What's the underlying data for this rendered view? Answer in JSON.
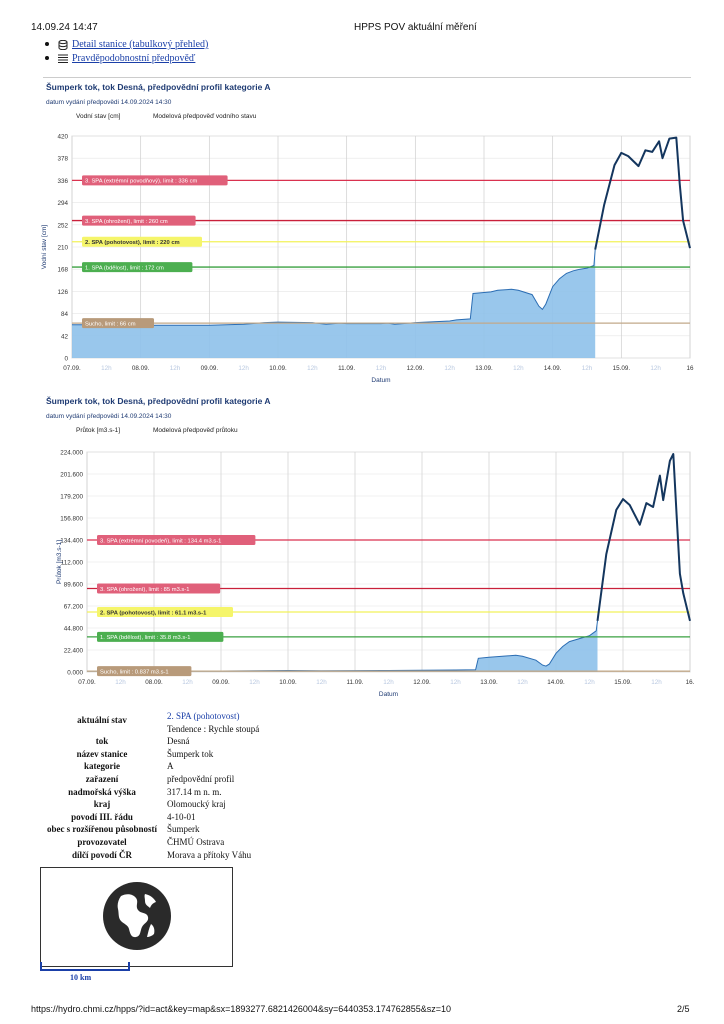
{
  "header": {
    "datetime": "14.09.24 14:47",
    "title": "HPPS POV aktuální měření"
  },
  "links": {
    "detail": "Detail stanice (tabulkový přehled)",
    "forecast": "Pravděpodobnostní předpověď"
  },
  "chart_data": [
    {
      "type": "area",
      "title": "Šumperk tok, tok Desná, předpovědní profil kategorie A",
      "subtitle": "datum vydání předpovědi 14.09.2024 14:30",
      "legend": [
        "Vodní stav [cm]",
        "Modelová předpověď vodního stavu"
      ],
      "ylabel": "Vodní stav [cm]",
      "xlabel": "Datum",
      "ylim": [
        0,
        420
      ],
      "yticks": [
        "0",
        "42",
        "84",
        "126",
        "168",
        "210",
        "252",
        "294",
        "336",
        "378",
        "420"
      ],
      "xlim": [
        0,
        9
      ],
      "xticks": [
        {
          "x": 0,
          "label": "07.09.",
          "minor": false
        },
        {
          "x": 0.5,
          "label": "12h",
          "minor": true
        },
        {
          "x": 1,
          "label": "08.09.",
          "minor": false
        },
        {
          "x": 1.5,
          "label": "12h",
          "minor": true
        },
        {
          "x": 2,
          "label": "09.09.",
          "minor": false
        },
        {
          "x": 2.5,
          "label": "12h",
          "minor": true
        },
        {
          "x": 3,
          "label": "10.09.",
          "minor": false
        },
        {
          "x": 3.5,
          "label": "12h",
          "minor": true
        },
        {
          "x": 4,
          "label": "11.09.",
          "minor": false
        },
        {
          "x": 4.5,
          "label": "12h",
          "minor": true
        },
        {
          "x": 5,
          "label": "12.09.",
          "minor": false
        },
        {
          "x": 5.5,
          "label": "12h",
          "minor": true
        },
        {
          "x": 6,
          "label": "13.09.",
          "minor": false
        },
        {
          "x": 6.5,
          "label": "12h",
          "minor": true
        },
        {
          "x": 7,
          "label": "14.09.",
          "minor": false
        },
        {
          "x": 7.5,
          "label": "12h",
          "minor": true
        },
        {
          "x": 8,
          "label": "15.09.",
          "minor": false
        },
        {
          "x": 8.5,
          "label": "12h",
          "minor": true
        },
        {
          "x": 9,
          "label": "16",
          "minor": false
        }
      ],
      "limits": [
        {
          "value": 336,
          "label": "3. SPA (extrémní povodňový), limit : 336 cm",
          "color": "#d9324f",
          "badge": "#e0607a",
          "textcolor": "#ffffff"
        },
        {
          "value": 260,
          "label": "3. SPA (ohrožení), limit : 260 cm",
          "color": "#c9203a",
          "badge": "#e0607a",
          "textcolor": "#ffffff"
        },
        {
          "value": 220,
          "label": "2. SPA (pohotovost), limit : 220 cm",
          "color": "#f2f25a",
          "badge": "#f5f56a",
          "textcolor": "#333333"
        },
        {
          "value": 172,
          "label": "1. SPA (bdělost), limit : 172 cm",
          "color": "#3aa040",
          "badge": "#4caf50",
          "textcolor": "#ffffff"
        },
        {
          "value": 66,
          "label": "Sucho, limit : 66 cm",
          "color": "#c2a98a",
          "badge": "#b89a7a",
          "textcolor": "#ffffff"
        }
      ],
      "observed_x": [
        0,
        0.3,
        0.6,
        1,
        1.5,
        2,
        2.5,
        2.8,
        3,
        3.5,
        3.7,
        3.9,
        4,
        4.5,
        4.6,
        4.7,
        5,
        5.5,
        5.6,
        5.8,
        5.84,
        6,
        6.1,
        6.2,
        6.4,
        6.5,
        6.7,
        6.8,
        6.85,
        6.9,
        7,
        7.1,
        7.2,
        7.3,
        7.4,
        7.5,
        7.6,
        7.62
      ],
      "observed_y": [
        63,
        63,
        62,
        62,
        62,
        62,
        64,
        67,
        68,
        67,
        64,
        66,
        65,
        65,
        66,
        64,
        67,
        70,
        72,
        74,
        122,
        124,
        125,
        128,
        130,
        128,
        120,
        98,
        92,
        102,
        135,
        150,
        160,
        165,
        168,
        170,
        175,
        205
      ],
      "forecast_x": [
        7.62,
        7.75,
        7.9,
        8,
        8.1,
        8.25,
        8.35,
        8.45,
        8.55,
        8.6,
        8.7,
        8.8,
        8.85,
        8.9,
        9
      ],
      "forecast_y": [
        205,
        290,
        365,
        388,
        382,
        363,
        393,
        390,
        410,
        378,
        415,
        417,
        330,
        260,
        208
      ]
    },
    {
      "type": "area",
      "title": "Šumperk tok, tok Desná, předpovědní profil kategorie A",
      "subtitle": "datum vydání předpovědi 14.09.2024 14:30",
      "legend": [
        "Průtok [m3.s-1]",
        "Modelová předpověď průtoku"
      ],
      "ylabel": "Průtok [m3.s-1]",
      "xlabel": "Datum",
      "ylim": [
        0,
        224
      ],
      "yticks": [
        "0.000",
        "22.400",
        "44.800",
        "67.200",
        "89.600",
        "112.000",
        "134.400",
        "156.800",
        "179.200",
        "201.600",
        "224.000"
      ],
      "xlim": [
        0,
        9
      ],
      "xticks": [
        {
          "x": 0,
          "label": "07.09.",
          "minor": false
        },
        {
          "x": 0.5,
          "label": "12h",
          "minor": true
        },
        {
          "x": 1,
          "label": "08.09.",
          "minor": false
        },
        {
          "x": 1.5,
          "label": "12h",
          "minor": true
        },
        {
          "x": 2,
          "label": "09.09.",
          "minor": false
        },
        {
          "x": 2.5,
          "label": "12h",
          "minor": true
        },
        {
          "x": 3,
          "label": "10.09.",
          "minor": false
        },
        {
          "x": 3.5,
          "label": "12h",
          "minor": true
        },
        {
          "x": 4,
          "label": "11.09.",
          "minor": false
        },
        {
          "x": 4.5,
          "label": "12h",
          "minor": true
        },
        {
          "x": 5,
          "label": "12.09.",
          "minor": false
        },
        {
          "x": 5.5,
          "label": "12h",
          "minor": true
        },
        {
          "x": 6,
          "label": "13.09.",
          "minor": false
        },
        {
          "x": 6.5,
          "label": "12h",
          "minor": true
        },
        {
          "x": 7,
          "label": "14.09.",
          "minor": false
        },
        {
          "x": 7.5,
          "label": "12h",
          "minor": true
        },
        {
          "x": 8,
          "label": "15.09.",
          "minor": false
        },
        {
          "x": 8.5,
          "label": "12h",
          "minor": true
        },
        {
          "x": 9,
          "label": "16.",
          "minor": false
        }
      ],
      "limits": [
        {
          "value": 134.4,
          "label": "3. SPA (extrémní povodeň), limit : 134.4 m3.s-1",
          "color": "#d9324f",
          "badge": "#e0607a",
          "textcolor": "#ffffff"
        },
        {
          "value": 85,
          "label": "3. SPA (ohrožení), limit : 85 m3.s-1",
          "color": "#c9203a",
          "badge": "#e0607a",
          "textcolor": "#ffffff"
        },
        {
          "value": 61.1,
          "label": "2. SPA (pohotovost), limit : 61.1 m3.s-1",
          "color": "#f2f25a",
          "badge": "#f5f56a",
          "textcolor": "#333333"
        },
        {
          "value": 35.8,
          "label": "1. SPA (bdělost), limit : 35.8 m3.s-1",
          "color": "#3aa040",
          "badge": "#4caf50",
          "textcolor": "#ffffff"
        },
        {
          "value": 0.837,
          "label": "Sucho, limit : 0.837 m3.s-1",
          "color": "#c2a98a",
          "badge": "#b89a7a",
          "textcolor": "#ffffff"
        }
      ],
      "observed_x": [
        0,
        1,
        1.5,
        2,
        2.5,
        3,
        3.5,
        4,
        4.5,
        5,
        5.5,
        5.8,
        5.84,
        6,
        6.2,
        6.4,
        6.5,
        6.7,
        6.8,
        6.85,
        6.9,
        7,
        7.1,
        7.2,
        7.3,
        7.4,
        7.5,
        7.6,
        7.62
      ],
      "observed_y": [
        1,
        1,
        1,
        1,
        1.3,
        1.5,
        1.3,
        1.4,
        1.5,
        1.8,
        2,
        2.3,
        14,
        15,
        16,
        17,
        16,
        12,
        7,
        6,
        8,
        19,
        26,
        31,
        33,
        35,
        37,
        42,
        52
      ],
      "forecast_x": [
        7.62,
        7.75,
        7.9,
        8,
        8.1,
        8.25,
        8.35,
        8.45,
        8.55,
        8.6,
        8.7,
        8.75,
        8.8,
        8.85,
        8.9,
        9
      ],
      "forecast_y": [
        52,
        120,
        165,
        176,
        170,
        150,
        172,
        168,
        200,
        175,
        215,
        222,
        160,
        100,
        80,
        52
      ]
    }
  ],
  "info": [
    {
      "key": "aktuální stav",
      "value": "2. SPA (pohotovost)",
      "extra": "Tendence : Rychle stoupá"
    },
    {
      "key": "tok",
      "value": "Desná"
    },
    {
      "key": "název stanice",
      "value": "Šumperk tok"
    },
    {
      "key": "kategorie",
      "value": "A"
    },
    {
      "key": "zařazení",
      "value": "předpovědní profil"
    },
    {
      "key": "nadmořská výška",
      "value": "317.14 m n. m."
    },
    {
      "key": "kraj",
      "value": "Olomoucký kraj"
    },
    {
      "key": "povodí III. řádu",
      "value": "4-10-01"
    },
    {
      "key": "obec s rozšířenou působností",
      "value": "Šumperk"
    },
    {
      "key": "provozovatel",
      "value": "ČHMÚ Ostrava"
    },
    {
      "key": "dílčí povodí ČR",
      "value": "Morava a přítoky Váhu"
    }
  ],
  "map": {
    "scale_label": "10 km",
    "icon": "globe-icon"
  },
  "footer": {
    "url": "https://hydro.chmi.cz/hpps/?id=act&key=map&sx=1893277.6821426004&sy=6440353.174762855&sz=10",
    "page": "2/5"
  },
  "colors": {
    "fill": "#8ec1ea",
    "line": "#2b6db3",
    "forecast": "#14365e",
    "accent": "#1f3b73"
  }
}
